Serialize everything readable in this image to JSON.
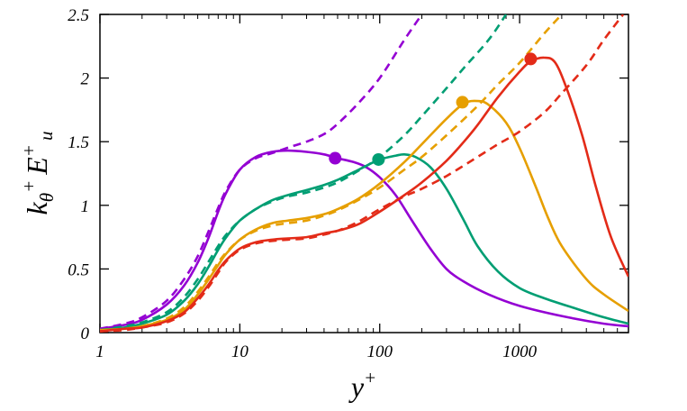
{
  "chart_data": {
    "type": "line",
    "xscale": "log",
    "xlim": [
      1,
      6000
    ],
    "ylim": [
      0,
      2.5
    ],
    "xticks": [
      1,
      10,
      100,
      1000
    ],
    "xtick_labels": [
      "1",
      "10",
      "100",
      "1000"
    ],
    "yticks": [
      0,
      0.5,
      1,
      1.5,
      2,
      2.5
    ],
    "ytick_labels": [
      "0",
      "0.5",
      "1",
      "1.5",
      "2",
      "2.5"
    ],
    "xlabel": {
      "base": "y",
      "sup": "+"
    },
    "ylabel": {
      "k": "k",
      "k_sub": "θ",
      "k_sup": "+",
      "e": "E",
      "e_sup": "+",
      "e_sub": "u"
    },
    "grid": false,
    "series": [
      {
        "color": "#9400D3",
        "solid": [
          [
            1,
            0.03
          ],
          [
            1.5,
            0.06
          ],
          [
            2,
            0.1
          ],
          [
            3,
            0.22
          ],
          [
            4,
            0.37
          ],
          [
            5,
            0.55
          ],
          [
            6,
            0.75
          ],
          [
            7,
            0.95
          ],
          [
            8,
            1.1
          ],
          [
            10,
            1.28
          ],
          [
            13,
            1.38
          ],
          [
            17,
            1.42
          ],
          [
            22,
            1.43
          ],
          [
            30,
            1.42
          ],
          [
            40,
            1.4
          ],
          [
            50,
            1.37
          ],
          [
            65,
            1.34
          ],
          [
            80,
            1.3
          ],
          [
            100,
            1.22
          ],
          [
            130,
            1.08
          ],
          [
            170,
            0.88
          ],
          [
            230,
            0.66
          ],
          [
            300,
            0.5
          ],
          [
            400,
            0.4
          ],
          [
            600,
            0.3
          ],
          [
            1000,
            0.21
          ],
          [
            2000,
            0.13
          ],
          [
            4000,
            0.07
          ],
          [
            6000,
            0.05
          ]
        ],
        "dashed": [
          [
            1,
            0.03
          ],
          [
            1.5,
            0.07
          ],
          [
            2,
            0.12
          ],
          [
            3,
            0.25
          ],
          [
            4,
            0.42
          ],
          [
            5,
            0.6
          ],
          [
            6,
            0.8
          ],
          [
            7,
            0.98
          ],
          [
            8,
            1.12
          ],
          [
            10,
            1.28
          ],
          [
            13,
            1.37
          ],
          [
            17,
            1.41
          ],
          [
            23,
            1.46
          ],
          [
            30,
            1.5
          ],
          [
            40,
            1.56
          ],
          [
            50,
            1.64
          ],
          [
            70,
            1.8
          ],
          [
            100,
            2.0
          ],
          [
            150,
            2.3
          ],
          [
            200,
            2.5
          ]
        ],
        "marker": {
          "x": 48,
          "y": 1.37
        }
      },
      {
        "color": "#009E73",
        "solid": [
          [
            1,
            0.02
          ],
          [
            1.5,
            0.04
          ],
          [
            2,
            0.07
          ],
          [
            3,
            0.14
          ],
          [
            4,
            0.25
          ],
          [
            5,
            0.38
          ],
          [
            6,
            0.52
          ],
          [
            7,
            0.65
          ],
          [
            8,
            0.75
          ],
          [
            10,
            0.88
          ],
          [
            13,
            0.97
          ],
          [
            17,
            1.04
          ],
          [
            22,
            1.08
          ],
          [
            30,
            1.12
          ],
          [
            40,
            1.16
          ],
          [
            50,
            1.2
          ],
          [
            65,
            1.26
          ],
          [
            80,
            1.31
          ],
          [
            100,
            1.36
          ],
          [
            130,
            1.39
          ],
          [
            150,
            1.4
          ],
          [
            180,
            1.38
          ],
          [
            230,
            1.3
          ],
          [
            300,
            1.13
          ],
          [
            400,
            0.88
          ],
          [
            500,
            0.68
          ],
          [
            700,
            0.48
          ],
          [
            1000,
            0.35
          ],
          [
            1500,
            0.27
          ],
          [
            2500,
            0.19
          ],
          [
            4000,
            0.12
          ],
          [
            6000,
            0.07
          ]
        ],
        "dashed": [
          [
            1,
            0.02
          ],
          [
            1.5,
            0.05
          ],
          [
            2,
            0.08
          ],
          [
            3,
            0.16
          ],
          [
            4,
            0.28
          ],
          [
            5,
            0.42
          ],
          [
            6,
            0.56
          ],
          [
            7,
            0.68
          ],
          [
            8,
            0.77
          ],
          [
            10,
            0.88
          ],
          [
            13,
            0.97
          ],
          [
            17,
            1.03
          ],
          [
            22,
            1.07
          ],
          [
            30,
            1.1
          ],
          [
            40,
            1.14
          ],
          [
            50,
            1.18
          ],
          [
            70,
            1.27
          ],
          [
            100,
            1.38
          ],
          [
            150,
            1.55
          ],
          [
            200,
            1.7
          ],
          [
            300,
            1.92
          ],
          [
            400,
            2.08
          ],
          [
            600,
            2.3
          ],
          [
            800,
            2.5
          ]
        ],
        "marker": {
          "x": 98,
          "y": 1.36
        }
      },
      {
        "color": "#E69F00",
        "solid": [
          [
            1,
            0.02
          ],
          [
            1.5,
            0.03
          ],
          [
            2,
            0.05
          ],
          [
            3,
            0.1
          ],
          [
            4,
            0.18
          ],
          [
            5,
            0.3
          ],
          [
            6,
            0.42
          ],
          [
            7,
            0.53
          ],
          [
            8,
            0.62
          ],
          [
            10,
            0.73
          ],
          [
            13,
            0.81
          ],
          [
            17,
            0.86
          ],
          [
            22,
            0.88
          ],
          [
            30,
            0.9
          ],
          [
            40,
            0.93
          ],
          [
            50,
            0.97
          ],
          [
            70,
            1.05
          ],
          [
            100,
            1.17
          ],
          [
            150,
            1.34
          ],
          [
            200,
            1.48
          ],
          [
            300,
            1.68
          ],
          [
            400,
            1.8
          ],
          [
            500,
            1.82
          ],
          [
            600,
            1.79
          ],
          [
            800,
            1.65
          ],
          [
            1000,
            1.45
          ],
          [
            1300,
            1.15
          ],
          [
            1600,
            0.9
          ],
          [
            2000,
            0.68
          ],
          [
            3000,
            0.42
          ],
          [
            4000,
            0.3
          ],
          [
            6000,
            0.17
          ]
        ],
        "dashed": [
          [
            1,
            0.01
          ],
          [
            1.5,
            0.03
          ],
          [
            2,
            0.05
          ],
          [
            3,
            0.11
          ],
          [
            4,
            0.2
          ],
          [
            5,
            0.32
          ],
          [
            6,
            0.44
          ],
          [
            7,
            0.55
          ],
          [
            8,
            0.63
          ],
          [
            10,
            0.73
          ],
          [
            13,
            0.8
          ],
          [
            17,
            0.84
          ],
          [
            22,
            0.86
          ],
          [
            30,
            0.88
          ],
          [
            40,
            0.92
          ],
          [
            50,
            0.96
          ],
          [
            70,
            1.04
          ],
          [
            100,
            1.14
          ],
          [
            150,
            1.28
          ],
          [
            200,
            1.38
          ],
          [
            300,
            1.55
          ],
          [
            500,
            1.78
          ],
          [
            700,
            1.95
          ],
          [
            1000,
            2.12
          ],
          [
            1500,
            2.35
          ],
          [
            2000,
            2.5
          ]
        ],
        "marker": {
          "x": 390,
          "y": 1.81
        }
      },
      {
        "color": "#E32B18",
        "solid": [
          [
            1,
            0.01
          ],
          [
            1.5,
            0.03
          ],
          [
            2,
            0.04
          ],
          [
            3,
            0.09
          ],
          [
            4,
            0.16
          ],
          [
            5,
            0.27
          ],
          [
            6,
            0.38
          ],
          [
            7,
            0.49
          ],
          [
            8,
            0.57
          ],
          [
            10,
            0.66
          ],
          [
            13,
            0.71
          ],
          [
            17,
            0.73
          ],
          [
            22,
            0.74
          ],
          [
            30,
            0.75
          ],
          [
            40,
            0.78
          ],
          [
            50,
            0.8
          ],
          [
            70,
            0.85
          ],
          [
            100,
            0.95
          ],
          [
            150,
            1.08
          ],
          [
            200,
            1.18
          ],
          [
            300,
            1.35
          ],
          [
            400,
            1.5
          ],
          [
            500,
            1.63
          ],
          [
            700,
            1.85
          ],
          [
            1000,
            2.05
          ],
          [
            1200,
            2.13
          ],
          [
            1500,
            2.16
          ],
          [
            1800,
            2.12
          ],
          [
            2200,
            1.9
          ],
          [
            2800,
            1.55
          ],
          [
            3500,
            1.15
          ],
          [
            4500,
            0.75
          ],
          [
            6000,
            0.44
          ]
        ],
        "dashed": [
          [
            1,
            0.01
          ],
          [
            1.5,
            0.02
          ],
          [
            2,
            0.04
          ],
          [
            3,
            0.08
          ],
          [
            4,
            0.15
          ],
          [
            5,
            0.25
          ],
          [
            6,
            0.36
          ],
          [
            7,
            0.47
          ],
          [
            8,
            0.56
          ],
          [
            10,
            0.65
          ],
          [
            13,
            0.7
          ],
          [
            17,
            0.72
          ],
          [
            22,
            0.73
          ],
          [
            30,
            0.74
          ],
          [
            40,
            0.77
          ],
          [
            50,
            0.8
          ],
          [
            70,
            0.87
          ],
          [
            100,
            0.97
          ],
          [
            150,
            1.07
          ],
          [
            200,
            1.13
          ],
          [
            300,
            1.23
          ],
          [
            500,
            1.38
          ],
          [
            700,
            1.48
          ],
          [
            1000,
            1.58
          ],
          [
            1500,
            1.73
          ],
          [
            2000,
            1.88
          ],
          [
            3000,
            2.1
          ],
          [
            4000,
            2.3
          ],
          [
            5500,
            2.5
          ]
        ],
        "marker": {
          "x": 1200,
          "y": 2.15
        }
      }
    ]
  }
}
